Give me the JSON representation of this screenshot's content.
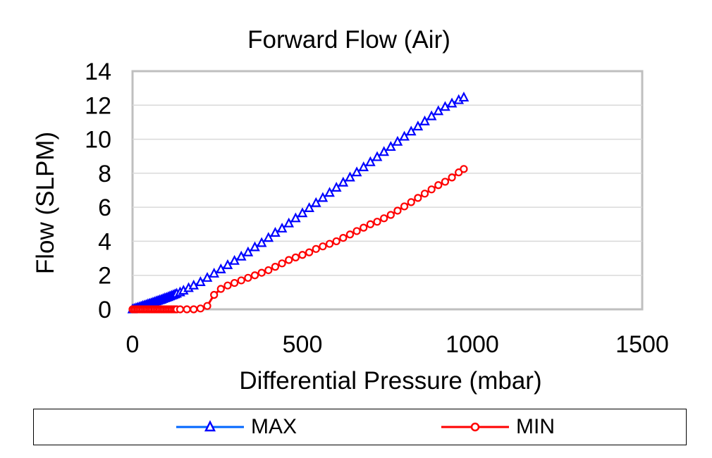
{
  "chart_data": {
    "type": "scatter",
    "title": "Forward Flow (Air)",
    "xlabel": "Differential Pressure (mbar)",
    "ylabel": "Flow (SLPM)",
    "xlim": [
      0,
      1500
    ],
    "ylim": [
      0,
      14
    ],
    "xticks": [
      "0",
      "500",
      "1000",
      "1500"
    ],
    "yticks": [
      "0",
      "2",
      "4",
      "6",
      "8",
      "10",
      "12",
      "14"
    ],
    "grid": true,
    "legend_position": "bottom",
    "series": [
      {
        "name": "MAX",
        "color": "#0000ff",
        "line_color": "#0066ff",
        "marker": "triangle",
        "x": [
          0,
          5,
          10,
          15,
          20,
          25,
          30,
          35,
          40,
          45,
          50,
          55,
          60,
          65,
          70,
          75,
          80,
          85,
          90,
          95,
          100,
          105,
          110,
          115,
          120,
          125,
          130,
          140,
          150,
          165,
          180,
          200,
          220,
          240,
          260,
          280,
          300,
          320,
          340,
          360,
          380,
          400,
          420,
          440,
          460,
          480,
          500,
          520,
          540,
          560,
          580,
          600,
          620,
          640,
          660,
          680,
          700,
          720,
          740,
          760,
          780,
          800,
          820,
          840,
          860,
          880,
          900,
          920,
          940,
          960,
          975
        ],
        "y": [
          0,
          0.03,
          0.07,
          0.1,
          0.13,
          0.16,
          0.2,
          0.23,
          0.26,
          0.3,
          0.33,
          0.36,
          0.4,
          0.43,
          0.47,
          0.5,
          0.54,
          0.57,
          0.61,
          0.65,
          0.68,
          0.72,
          0.76,
          0.8,
          0.84,
          0.88,
          0.92,
          1.0,
          1.1,
          1.25,
          1.4,
          1.6,
          1.85,
          2.1,
          2.35,
          2.6,
          2.85,
          3.1,
          3.35,
          3.65,
          3.9,
          4.2,
          4.5,
          4.75,
          5.05,
          5.35,
          5.65,
          5.95,
          6.25,
          6.55,
          6.85,
          7.15,
          7.45,
          7.75,
          8.05,
          8.35,
          8.65,
          8.95,
          9.25,
          9.55,
          9.85,
          10.15,
          10.45,
          10.75,
          11.05,
          11.35,
          11.65,
          11.9,
          12.1,
          12.3,
          12.45
        ]
      },
      {
        "name": "MIN",
        "color": "#ff0000",
        "line_color": "#ff0000",
        "marker": "circle",
        "x": [
          0,
          5,
          10,
          15,
          20,
          25,
          30,
          35,
          40,
          45,
          50,
          55,
          60,
          65,
          70,
          75,
          80,
          85,
          90,
          95,
          100,
          105,
          110,
          115,
          120,
          125,
          130,
          140,
          160,
          180,
          200,
          220,
          240,
          260,
          280,
          300,
          320,
          340,
          360,
          380,
          400,
          420,
          440,
          460,
          480,
          500,
          520,
          540,
          560,
          580,
          600,
          620,
          640,
          660,
          680,
          700,
          720,
          740,
          760,
          780,
          800,
          820,
          840,
          860,
          880,
          900,
          920,
          940,
          960,
          975
        ],
        "y": [
          0,
          0,
          0,
          0,
          0,
          0,
          0,
          0,
          0,
          0,
          0,
          0,
          0,
          0,
          0,
          0,
          0,
          0,
          0,
          0,
          0,
          0,
          0,
          0,
          0,
          0,
          0,
          0,
          0,
          0,
          0.05,
          0.2,
          0.85,
          1.2,
          1.4,
          1.55,
          1.7,
          1.85,
          2.0,
          2.15,
          2.3,
          2.5,
          2.7,
          2.9,
          3.05,
          3.2,
          3.35,
          3.55,
          3.7,
          3.85,
          4.0,
          4.2,
          4.4,
          4.6,
          4.8,
          5.0,
          5.15,
          5.35,
          5.55,
          5.8,
          6.05,
          6.3,
          6.55,
          6.8,
          7.05,
          7.3,
          7.5,
          7.75,
          8.05,
          8.25
        ]
      }
    ]
  }
}
